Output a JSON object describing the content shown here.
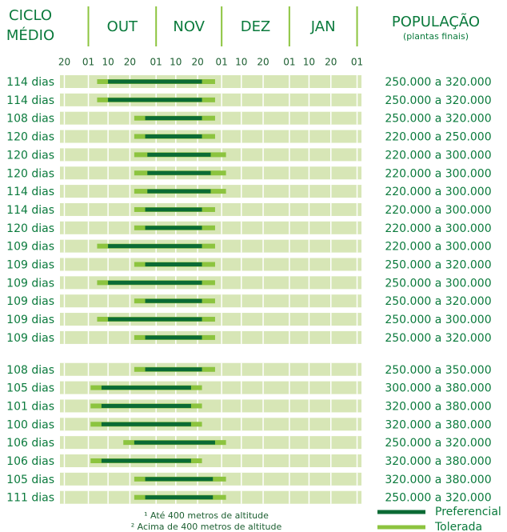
{
  "chart_data": {
    "type": "range",
    "cycle_header": [
      "CICLO",
      "MÉDIO"
    ],
    "population_header": "POPULAÇÃO",
    "population_subheader": "(plantas finais)",
    "months": [
      "OUT",
      "NOV",
      "DEZ",
      "JAN"
    ],
    "xlim": [
      17,
      155
    ],
    "xticks": [
      {
        "value": 19,
        "label": "20"
      },
      {
        "value": 30,
        "label": "01"
      },
      {
        "value": 39,
        "label": "10"
      },
      {
        "value": 49,
        "label": "20"
      },
      {
        "value": 61,
        "label": "01"
      },
      {
        "value": 70,
        "label": "10"
      },
      {
        "value": 80,
        "label": "20"
      },
      {
        "value": 91,
        "label": "01"
      },
      {
        "value": 100,
        "label": "10"
      },
      {
        "value": 110,
        "label": "20"
      },
      {
        "value": 122,
        "label": "01"
      },
      {
        "value": 131,
        "label": "10"
      },
      {
        "value": 141,
        "label": "20"
      },
      {
        "value": 153,
        "label": "01"
      }
    ],
    "series": [
      {
        "name": "Preferencial",
        "color": "#0b6b35"
      },
      {
        "name": "Tolerada",
        "color": "#8cc43f"
      }
    ],
    "groups": [
      {
        "rows": [
          {
            "cycle": "114 dias",
            "population": "250.000 a 320.000",
            "tolerated": [
              34,
              88
            ],
            "preferred": [
              39,
              82
            ]
          },
          {
            "cycle": "114 dias",
            "population": "250.000 a 320.000",
            "tolerated": [
              34,
              88
            ],
            "preferred": [
              39,
              82
            ]
          },
          {
            "cycle": "108 dias",
            "population": "250.000 a 320.000",
            "tolerated": [
              51,
              88
            ],
            "preferred": [
              56,
              82
            ]
          },
          {
            "cycle": "120 dias",
            "population": "220.000 a 250.000",
            "tolerated": [
              51,
              88
            ],
            "preferred": [
              56,
              82
            ]
          },
          {
            "cycle": "120 dias",
            "population": "220.000 a 300.000",
            "tolerated": [
              51,
              93
            ],
            "preferred": [
              57,
              86
            ]
          },
          {
            "cycle": "120 dias",
            "population": "220.000 a 300.000",
            "tolerated": [
              51,
              93
            ],
            "preferred": [
              57,
              86
            ]
          },
          {
            "cycle": "114 dias",
            "population": "220.000 a 300.000",
            "tolerated": [
              51,
              93
            ],
            "preferred": [
              57,
              86
            ]
          },
          {
            "cycle": "114 dias",
            "population": "220.000 a 300.000",
            "tolerated": [
              51,
              88
            ],
            "preferred": [
              56,
              82
            ]
          },
          {
            "cycle": "120 dias",
            "population": "220.000 a 300.000",
            "tolerated": [
              51,
              88
            ],
            "preferred": [
              56,
              82
            ]
          },
          {
            "cycle": "109 dias",
            "population": "220.000 a 300.000",
            "tolerated": [
              34,
              88
            ],
            "preferred": [
              39,
              82
            ]
          },
          {
            "cycle": "109 dias",
            "population": "250.000 a 320.000",
            "tolerated": [
              51,
              88
            ],
            "preferred": [
              56,
              82
            ]
          },
          {
            "cycle": "109 dias",
            "population": "250.000 a 300.000",
            "tolerated": [
              34,
              88
            ],
            "preferred": [
              39,
              82
            ]
          },
          {
            "cycle": "109 dias",
            "population": "250.000 a 320.000",
            "tolerated": [
              51,
              88
            ],
            "preferred": [
              56,
              82
            ]
          },
          {
            "cycle": "109 dias",
            "population": "250.000 a 300.000",
            "tolerated": [
              34,
              88
            ],
            "preferred": [
              39,
              82
            ]
          },
          {
            "cycle": "109 dias",
            "population": "250.000 a 320.000",
            "tolerated": [
              51,
              88
            ],
            "preferred": [
              56,
              82
            ]
          }
        ]
      },
      {
        "rows": [
          {
            "cycle": "108 dias",
            "population": "250.000 a 350.000",
            "tolerated": [
              51,
              88
            ],
            "preferred": [
              56,
              82
            ]
          },
          {
            "cycle": "105 dias",
            "population": "300.000 a 380.000",
            "tolerated": [
              31,
              82
            ],
            "preferred": [
              36,
              77
            ]
          },
          {
            "cycle": "101 dias",
            "population": "320.000 a 380.000",
            "tolerated": [
              31,
              82
            ],
            "preferred": [
              36,
              77
            ]
          },
          {
            "cycle": "100 dias",
            "population": "320.000 a 380.000",
            "tolerated": [
              31,
              82
            ],
            "preferred": [
              36,
              77
            ]
          },
          {
            "cycle": "106 dias",
            "population": "250.000 a 320.000",
            "tolerated": [
              46,
              93
            ],
            "preferred": [
              51,
              88
            ]
          },
          {
            "cycle": "106 dias",
            "population": "320.000 a 380.000",
            "tolerated": [
              31,
              82
            ],
            "preferred": [
              36,
              77
            ]
          },
          {
            "cycle": "105 dias",
            "population": "320.000 a 380.000",
            "tolerated": [
              51,
              93
            ],
            "preferred": [
              56,
              87
            ]
          },
          {
            "cycle": "111 dias",
            "population": "250.000 a 320.000",
            "tolerated": [
              51,
              93
            ],
            "preferred": [
              56,
              87
            ]
          }
        ]
      }
    ],
    "footnotes": [
      "¹ Até 400 metros de altitude",
      "² Acima de 400 metros de altitude"
    ]
  }
}
